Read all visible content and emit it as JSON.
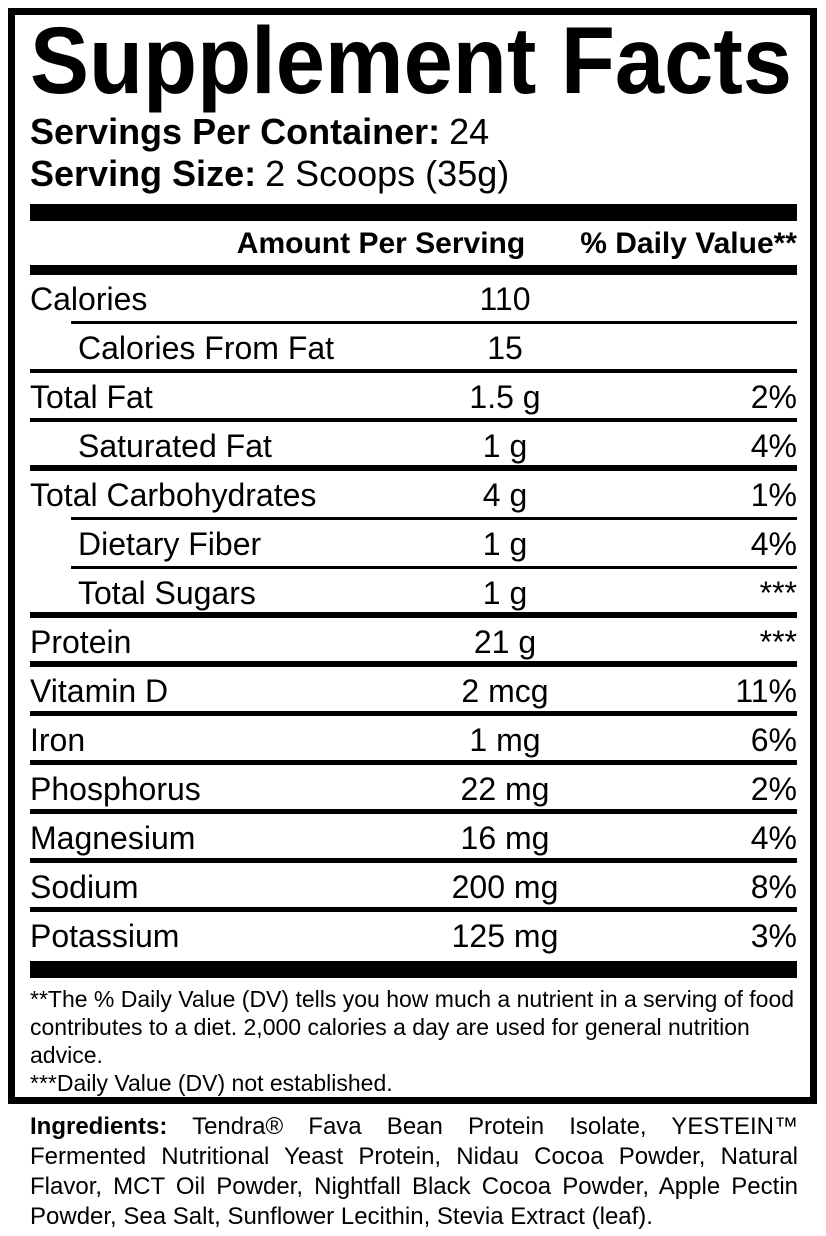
{
  "label": {
    "title": "Supplement Facts",
    "servings_per_container_label": "Servings Per Container:",
    "servings_per_container_value": "24",
    "serving_size_label": "Serving Size:",
    "serving_size_value": "2 Scoops (35g)",
    "columns": {
      "amount": "Amount Per Serving",
      "daily_value": "% Daily Value**"
    },
    "rows": [
      {
        "label": "Calories",
        "amount": "110",
        "dv": "",
        "indent": false
      },
      {
        "label": "Calories From Fat",
        "amount": "15",
        "dv": "",
        "indent": true
      },
      {
        "label": "Total Fat",
        "amount": "1.5 g",
        "dv": "2%",
        "indent": false
      },
      {
        "label": "Saturated Fat",
        "amount": "1 g",
        "dv": "4%",
        "indent": true
      },
      {
        "label": "Total Carbohydrates",
        "amount": "4 g",
        "dv": "1%",
        "indent": false
      },
      {
        "label": "Dietary Fiber",
        "amount": "1 g",
        "dv": "4%",
        "indent": true
      },
      {
        "label": "Total Sugars",
        "amount": "1 g",
        "dv": "***",
        "indent": true
      },
      {
        "label": "Protein",
        "amount": "21 g",
        "dv": "***",
        "indent": false
      },
      {
        "label": "Vitamin D",
        "amount": "2 mcg",
        "dv": "11%",
        "indent": false
      },
      {
        "label": "Iron",
        "amount": "1 mg",
        "dv": "6%",
        "indent": false
      },
      {
        "label": "Phosphorus",
        "amount": "22 mg",
        "dv": "2%",
        "indent": false
      },
      {
        "label": "Magnesium",
        "amount": "16 mg",
        "dv": "4%",
        "indent": false
      },
      {
        "label": "Sodium",
        "amount": "200 mg",
        "dv": "8%",
        "indent": false
      },
      {
        "label": "Potassium",
        "amount": "125 mg",
        "dv": "3%",
        "indent": false
      }
    ],
    "footnotes": [
      "**The % Daily Value (DV) tells you how much a nutrient in a serving of food contributes to a diet. 2,000 calories a day are used for general nutrition advice.",
      "***Daily Value (DV) not established."
    ]
  },
  "ingredients": {
    "label": "Ingredients:",
    "text": "Tendra® Fava Bean Protein Isolate, YESTEIN™ Fermented Nutritional Yeast Protein, Nidau Cocoa Powder, Natural Flavor, MCT Oil Powder, Nightfall Black Cocoa Powder, Apple Pectin Powder, Sea Salt, Sunflower Lecithin, Stevia Extract (leaf)."
  },
  "colors": {
    "ink": "#000000",
    "background": "#ffffff"
  }
}
